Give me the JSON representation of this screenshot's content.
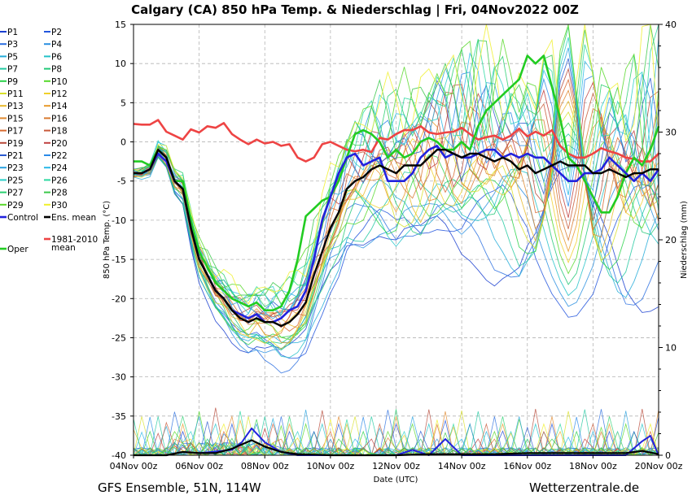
{
  "title": "Calgary  (CA)  850 hPa Temp. & Niederschlag | Fri, 04Nov2022 00Z",
  "footer": {
    "left": "GFS Ensemble, 51N, 114W",
    "right": "Wetterzentrale.de"
  },
  "colors": {
    "control": "#2222dd",
    "ens_mean": "#000000",
    "clim": "#ee4444",
    "oper": "#22cc22",
    "grid": "#b4b4b4"
  },
  "chart_data": {
    "type": "line",
    "title": "Calgary  (CA)  850 hPa Temp. & Niederschlag | Fri, 04Nov2022 00Z",
    "xlabel": "Date (UTC)",
    "ylabel": "850 hPa Temp. (°C)",
    "y2label": "Niederschlag (mm)",
    "ylim": [
      -40,
      15
    ],
    "y2lim": [
      0,
      40
    ],
    "grid": true,
    "legend_position": "left outside",
    "x_ticks": [
      "04Nov 00z",
      "06Nov 00z",
      "08Nov 00z",
      "10Nov 00z",
      "12Nov 00z",
      "14Nov 00z",
      "16Nov 00z",
      "18Nov 00z",
      "20Nov 00z"
    ],
    "y_ticks": [
      15,
      10,
      5,
      0,
      -5,
      -10,
      -15,
      -20,
      -25,
      -30,
      -35,
      -40
    ],
    "y2_ticks": [
      40,
      30,
      20,
      10,
      0
    ],
    "x_unit": "days since 04Nov 00z",
    "legend": [
      {
        "name": "P1",
        "color": "#1a3fd0"
      },
      {
        "name": "P2",
        "color": "#2255dd"
      },
      {
        "name": "P3",
        "color": "#2a6ee0"
      },
      {
        "name": "P4",
        "color": "#2a8fe0"
      },
      {
        "name": "P5",
        "color": "#22aad8"
      },
      {
        "name": "P6",
        "color": "#22c2c8"
      },
      {
        "name": "P7",
        "color": "#22c8a0"
      },
      {
        "name": "P8",
        "color": "#22c878"
      },
      {
        "name": "P9",
        "color": "#2ad24a"
      },
      {
        "name": "P10",
        "color": "#55d82a"
      },
      {
        "name": "P11",
        "color": "#d8e02a"
      },
      {
        "name": "P12",
        "color": "#f0d02a"
      },
      {
        "name": "P13",
        "color": "#e8b82a"
      },
      {
        "name": "P14",
        "color": "#e89a2a"
      },
      {
        "name": "P15",
        "color": "#e08a30"
      },
      {
        "name": "P16",
        "color": "#d87a30"
      },
      {
        "name": "P17",
        "color": "#d86a30"
      },
      {
        "name": "P18",
        "color": "#c85a3a"
      },
      {
        "name": "P19",
        "color": "#b84a3a"
      },
      {
        "name": "P20",
        "color": "#c04040"
      },
      {
        "name": "P21",
        "color": "#2a5ad0"
      },
      {
        "name": "P22",
        "color": "#2a8ae8"
      },
      {
        "name": "P23",
        "color": "#2aa2e0"
      },
      {
        "name": "P24",
        "color": "#2ab8e8"
      },
      {
        "name": "P25",
        "color": "#2ad0c8"
      },
      {
        "name": "P26",
        "color": "#2ad8a0"
      },
      {
        "name": "P27",
        "color": "#2ad070"
      },
      {
        "name": "P28",
        "color": "#3ac84a"
      },
      {
        "name": "P29",
        "color": "#58d82a"
      },
      {
        "name": "P30",
        "color": "#f0f02a"
      },
      {
        "name": "Control",
        "color": "#2222dd"
      },
      {
        "name": "Ens. mean",
        "color": "#000000"
      },
      {
        "name": "1981-2010 mean",
        "color": "#ee4444"
      },
      {
        "name": "Oper",
        "color": "#22cc22"
      }
    ],
    "series": [
      {
        "name": "Oper",
        "axis": "temp",
        "x": [
          0,
          0.25,
          0.5,
          0.75,
          1,
          1.25,
          1.5,
          1.75,
          2,
          2.25,
          2.5,
          2.75,
          3,
          3.25,
          3.5,
          3.75,
          4,
          4.25,
          4.5,
          4.75,
          5,
          5.25,
          5.5,
          5.75,
          6,
          6.25,
          6.5,
          6.75,
          7,
          7.25,
          7.5,
          7.75,
          8,
          8.25,
          8.5,
          8.75,
          9,
          9.25,
          9.5,
          9.75,
          10,
          10.25,
          10.5,
          10.75,
          11,
          11.25,
          11.5,
          11.75,
          12,
          12.25,
          12.5,
          12.75,
          13,
          13.25,
          13.5,
          13.75,
          14,
          14.25,
          14.5,
          14.75,
          15,
          15.25,
          15.5,
          15.75,
          16
        ],
        "y": [
          -2.5,
          -2.5,
          -3,
          -1,
          -2,
          -5,
          -5,
          -10,
          -14,
          -16,
          -18,
          -19,
          -20,
          -20.5,
          -21,
          -20.5,
          -21.5,
          -21.5,
          -21,
          -19,
          -15,
          -9.5,
          -8.5,
          -7.5,
          -7,
          -5,
          -2,
          1,
          1.5,
          1,
          0,
          -2,
          -1,
          -2,
          -1.5,
          0,
          0.5,
          0,
          -1,
          -1,
          0,
          -1,
          2,
          4,
          5,
          6,
          7,
          8,
          11,
          10,
          11,
          7,
          3,
          -2,
          -3,
          -5,
          -7,
          -9,
          -9,
          -7,
          -4,
          -2,
          -3,
          -1,
          2
        ]
      },
      {
        "name": "Control",
        "axis": "temp",
        "x": [
          0,
          0.25,
          0.5,
          0.75,
          1,
          1.25,
          1.5,
          1.75,
          2,
          2.25,
          2.5,
          2.75,
          3,
          3.25,
          3.5,
          3.75,
          4,
          4.25,
          4.5,
          4.75,
          5,
          5.25,
          5.5,
          5.75,
          6,
          6.25,
          6.5,
          6.75,
          7,
          7.25,
          7.5,
          7.75,
          8,
          8.25,
          8.5,
          8.75,
          9,
          9.25,
          9.5,
          9.75,
          10,
          10.25,
          10.5,
          10.75,
          11,
          11.25,
          11.5,
          11.75,
          12,
          12.25,
          12.5,
          12.75,
          13,
          13.25,
          13.5,
          13.75,
          14,
          14.25,
          14.5,
          14.75,
          15,
          15.25,
          15.5,
          15.75,
          16
        ],
        "y": [
          -4,
          -4,
          -3.5,
          -1.5,
          -2.5,
          -5,
          -6,
          -11,
          -15,
          -17,
          -19,
          -20,
          -21.5,
          -22,
          -22.5,
          -22,
          -23,
          -23,
          -22.5,
          -21.5,
          -21,
          -19,
          -15,
          -10,
          -7,
          -4,
          -2,
          -1.5,
          -3,
          -2.5,
          -2,
          -5,
          -5,
          -5,
          -4,
          -2,
          -1,
          -0.5,
          -2,
          -1.5,
          -2,
          -2,
          -1.5,
          -1,
          -1,
          -2,
          -1.5,
          -2,
          -1.5,
          -2,
          -2,
          -3,
          -4,
          -5,
          -5,
          -4,
          -4,
          -3.5,
          -2,
          -3,
          -4,
          -5,
          -4,
          -5,
          -3.5
        ]
      },
      {
        "name": "Ens. mean",
        "axis": "temp",
        "x": [
          0,
          0.25,
          0.5,
          0.75,
          1,
          1.25,
          1.5,
          1.75,
          2,
          2.25,
          2.5,
          2.75,
          3,
          3.25,
          3.5,
          3.75,
          4,
          4.25,
          4.5,
          4.75,
          5,
          5.25,
          5.5,
          5.75,
          6,
          6.25,
          6.5,
          6.75,
          7,
          7.25,
          7.5,
          7.75,
          8,
          8.25,
          8.5,
          8.75,
          9,
          9.25,
          9.5,
          9.75,
          10,
          10.25,
          10.5,
          10.75,
          11,
          11.25,
          11.5,
          11.75,
          12,
          12.25,
          12.5,
          12.75,
          13,
          13.25,
          13.5,
          13.75,
          14,
          14.25,
          14.5,
          14.75,
          15,
          15.25,
          15.5,
          15.75,
          16
        ],
        "y": [
          -4,
          -4,
          -3.5,
          -1,
          -2,
          -5,
          -6,
          -11,
          -15,
          -17,
          -19,
          -20,
          -21.5,
          -22.5,
          -23,
          -22.5,
          -23,
          -23,
          -23.5,
          -23,
          -22,
          -20.5,
          -17,
          -14,
          -11,
          -9,
          -6,
          -5,
          -4.5,
          -3.5,
          -3,
          -3.5,
          -4,
          -3,
          -3,
          -3,
          -2,
          -1,
          -1,
          -1.5,
          -2,
          -1.5,
          -1.5,
          -2,
          -2.5,
          -2,
          -2.5,
          -3.5,
          -3,
          -4,
          -3.5,
          -3,
          -2.5,
          -3,
          -3,
          -3,
          -4,
          -4,
          -3.5,
          -4,
          -4.5,
          -4,
          -4,
          -3.5,
          -3.5
        ]
      },
      {
        "name": "1981-2010 mean",
        "axis": "temp",
        "x": [
          0,
          0.25,
          0.5,
          0.75,
          1,
          1.25,
          1.5,
          1.75,
          2,
          2.25,
          2.5,
          2.75,
          3,
          3.25,
          3.5,
          3.75,
          4,
          4.25,
          4.5,
          4.75,
          5,
          5.25,
          5.5,
          5.75,
          6,
          6.25,
          6.5,
          6.75,
          7,
          7.25,
          7.5,
          7.75,
          8,
          8.25,
          8.5,
          8.75,
          9,
          9.25,
          9.5,
          9.75,
          10,
          10.25,
          10.5,
          10.75,
          11,
          11.25,
          11.5,
          11.75,
          12,
          12.25,
          12.5,
          12.75,
          13,
          13.25,
          13.5,
          13.75,
          14,
          14.25,
          14.5,
          14.75,
          15,
          15.25,
          15.5,
          15.75,
          16
        ],
        "y": [
          2.3,
          2.2,
          2.2,
          2.8,
          1.3,
          0.8,
          0.3,
          1.6,
          1.2,
          2,
          1.8,
          2.4,
          1,
          0.3,
          -0.3,
          0.3,
          -0.2,
          0,
          -0.5,
          -0.3,
          -2,
          -2.5,
          -2,
          -0.3,
          0,
          -0.5,
          -1,
          -1.2,
          -1,
          -1.3,
          0.5,
          0.3,
          1,
          1.5,
          1.5,
          2,
          1.2,
          1,
          1.2,
          1.3,
          1.8,
          1,
          0.3,
          0.6,
          0.8,
          0.3,
          0.8,
          1.7,
          0.7,
          1.3,
          0.8,
          1.5,
          -0.5,
          -1.5,
          -2,
          -2,
          -1.5,
          -0.8,
          -1.2,
          -1.5,
          -2,
          -2.2,
          -2.5,
          -2.5,
          -1.5
        ]
      },
      {
        "name": "Control precip",
        "axis": "precip",
        "x": [
          0,
          1,
          1.5,
          2,
          3,
          3.3,
          3.6,
          4,
          4.5,
          5,
          6,
          8,
          8.5,
          9,
          9.5,
          10,
          11,
          12,
          13,
          14,
          14.5,
          15,
          15.5,
          15.75,
          16
        ],
        "y": [
          0,
          0,
          0.3,
          0.2,
          0.5,
          1.2,
          2.5,
          1.2,
          0.3,
          0,
          0,
          0,
          0.5,
          0,
          1.5,
          0,
          0,
          0,
          0,
          0,
          0,
          0,
          1.3,
          1.8,
          0
        ]
      },
      {
        "name": "Ens. mean precip",
        "axis": "precip",
        "x": [
          0,
          1,
          1.5,
          2,
          2.5,
          3,
          3.3,
          3.6,
          4,
          4.5,
          5,
          6,
          7,
          8,
          9,
          10,
          11,
          12,
          13,
          14,
          15,
          15.5,
          16
        ],
        "y": [
          0,
          0,
          0.3,
          0.2,
          0.2,
          0.6,
          1,
          1.4,
          0.8,
          0.3,
          0.1,
          0,
          0,
          0,
          0.1,
          0.1,
          0.1,
          0.2,
          0.2,
          0.2,
          0.2,
          0.4,
          0.1
        ]
      }
    ]
  }
}
